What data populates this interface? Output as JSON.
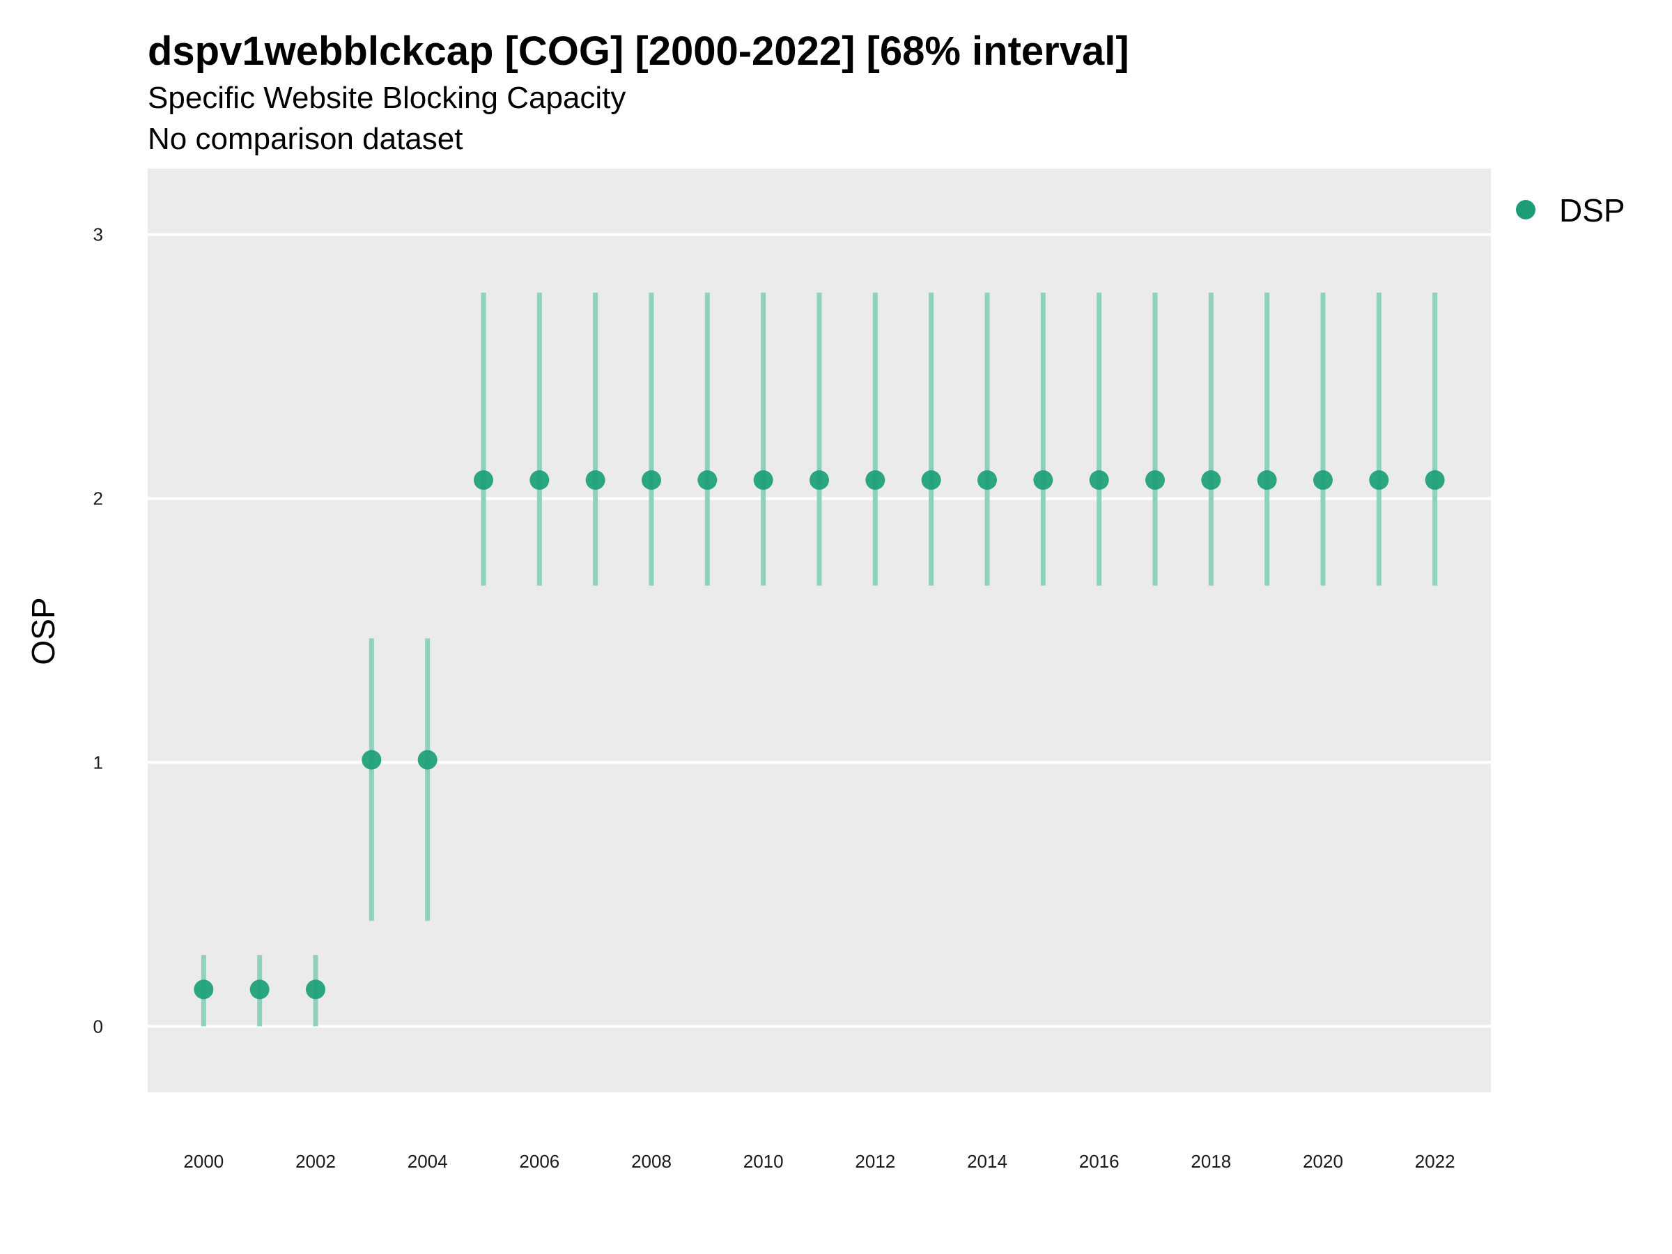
{
  "chart_data": {
    "type": "scatter",
    "title": "dspv1webblckcap [COG] [2000-2022] [68% interval]",
    "subtitle": "Specific Website Blocking Capacity",
    "caption_line": "No comparison dataset",
    "xlabel": "",
    "ylabel": "OSP",
    "xlim": [
      1999,
      2023
    ],
    "ylim": [
      -0.25,
      3.25
    ],
    "x_ticks": [
      2000,
      2002,
      2004,
      2006,
      2008,
      2010,
      2012,
      2014,
      2016,
      2018,
      2020,
      2022
    ],
    "y_ticks": [
      0,
      1,
      2,
      3
    ],
    "grid": true,
    "legend_position": "top-right",
    "colors": {
      "panel_background": "#EBEBEB",
      "gridline": "#FFFFFF",
      "point": "#1B9E77",
      "interval": "#8ED1BC"
    },
    "series": [
      {
        "name": "DSP",
        "x": [
          2000,
          2001,
          2002,
          2003,
          2004,
          2005,
          2006,
          2007,
          2008,
          2009,
          2010,
          2011,
          2012,
          2013,
          2014,
          2015,
          2016,
          2017,
          2018,
          2019,
          2020,
          2021,
          2022
        ],
        "y": [
          0.14,
          0.14,
          0.14,
          1.01,
          1.01,
          2.07,
          2.07,
          2.07,
          2.07,
          2.07,
          2.07,
          2.07,
          2.07,
          2.07,
          2.07,
          2.07,
          2.07,
          2.07,
          2.07,
          2.07,
          2.07,
          2.07,
          2.07
        ],
        "lower": [
          0.0,
          0.0,
          0.0,
          0.4,
          0.4,
          1.67,
          1.67,
          1.67,
          1.67,
          1.67,
          1.67,
          1.67,
          1.67,
          1.67,
          1.67,
          1.67,
          1.67,
          1.67,
          1.67,
          1.67,
          1.67,
          1.67,
          1.67
        ],
        "upper": [
          0.27,
          0.27,
          0.27,
          1.47,
          1.47,
          2.78,
          2.78,
          2.78,
          2.78,
          2.78,
          2.78,
          2.78,
          2.78,
          2.78,
          2.78,
          2.78,
          2.78,
          2.78,
          2.78,
          2.78,
          2.78,
          2.78,
          2.78
        ]
      }
    ]
  }
}
